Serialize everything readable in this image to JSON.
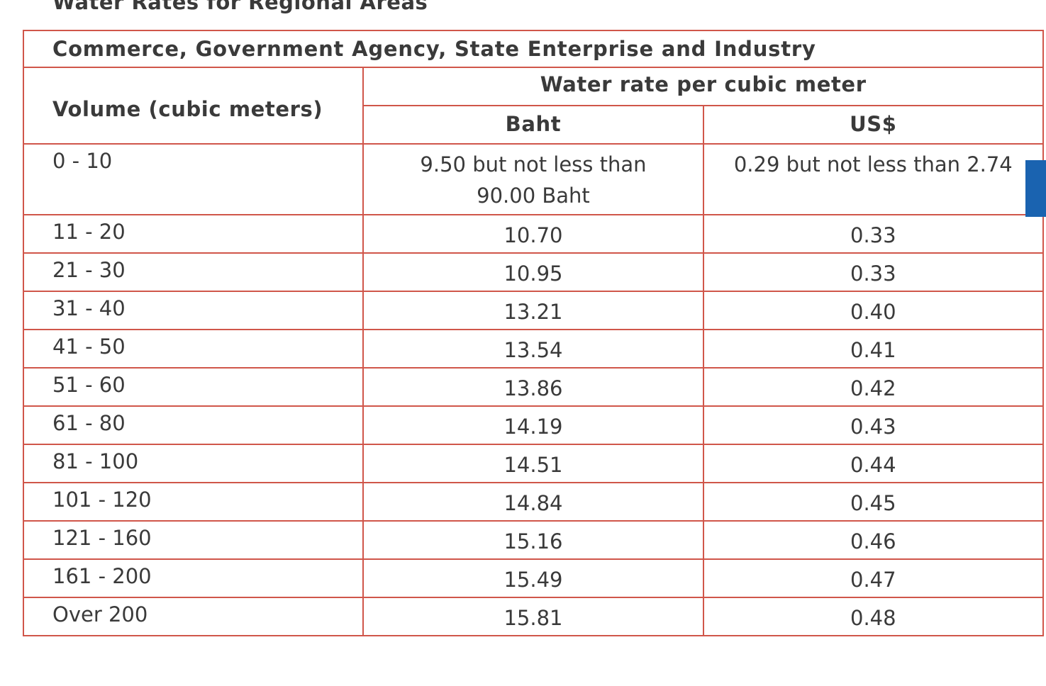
{
  "page": {
    "heading": "Water Rates for Regional Areas"
  },
  "table": {
    "category": "Commerce, Government Agency, State Enterprise and Industry",
    "header_volume": "Volume (cubic meters)",
    "header_rate": "Water rate per cubic meter",
    "header_baht": "Baht",
    "header_usd": "US$",
    "rows": [
      {
        "volume": "0 - 10",
        "baht": "9.50 but not less than 90.00 Baht",
        "usd": "0.29 but not less than 2.74"
      },
      {
        "volume": "11 - 20",
        "baht": "10.70",
        "usd": "0.33"
      },
      {
        "volume": "21 - 30",
        "baht": "10.95",
        "usd": "0.33"
      },
      {
        "volume": "31 - 40",
        "baht": "13.21",
        "usd": "0.40"
      },
      {
        "volume": "41 - 50",
        "baht": "13.54",
        "usd": "0.41"
      },
      {
        "volume": "51 - 60",
        "baht": "13.86",
        "usd": "0.42"
      },
      {
        "volume": "61 - 80",
        "baht": "14.19",
        "usd": "0.43"
      },
      {
        "volume": "81 - 100",
        "baht": "14.51",
        "usd": "0.44"
      },
      {
        "volume": "101 - 120",
        "baht": "14.84",
        "usd": "0.45"
      },
      {
        "volume": "121 - 160",
        "baht": "15.16",
        "usd": "0.46"
      },
      {
        "volume": "161 - 200",
        "baht": "15.49",
        "usd": "0.47"
      },
      {
        "volume": "Over 200",
        "baht": "15.81",
        "usd": "0.48"
      }
    ]
  },
  "colors": {
    "border": "#d0564a",
    "text": "#3a3a3a",
    "side_tab": "#1a63b0"
  }
}
